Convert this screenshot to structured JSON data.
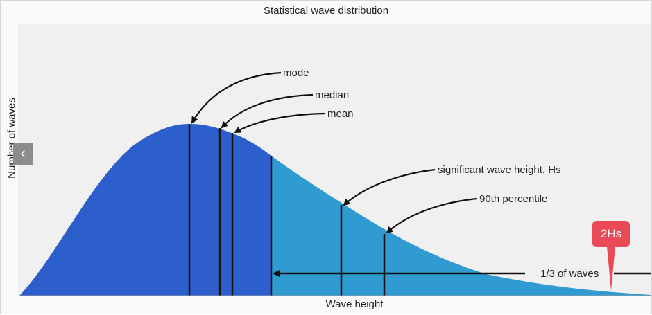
{
  "diagram": {
    "title": "Statistical wave distribution",
    "xlabel": "Wave height",
    "ylabel": "Number of waves",
    "annotations": {
      "mode": "mode",
      "median": "median",
      "mean": "mean",
      "significant": "significant wave height, Hs",
      "percentile90": "90th percentile",
      "third": "1/3 of waves"
    },
    "marker_label": "2Hs",
    "nav_prev_icon": "‹",
    "colors": {
      "dark_fill": "#2d5fcc",
      "light_fill": "#2f9bd1",
      "marker": "#e94a55",
      "plot_background": "#f0f0f0"
    }
  }
}
